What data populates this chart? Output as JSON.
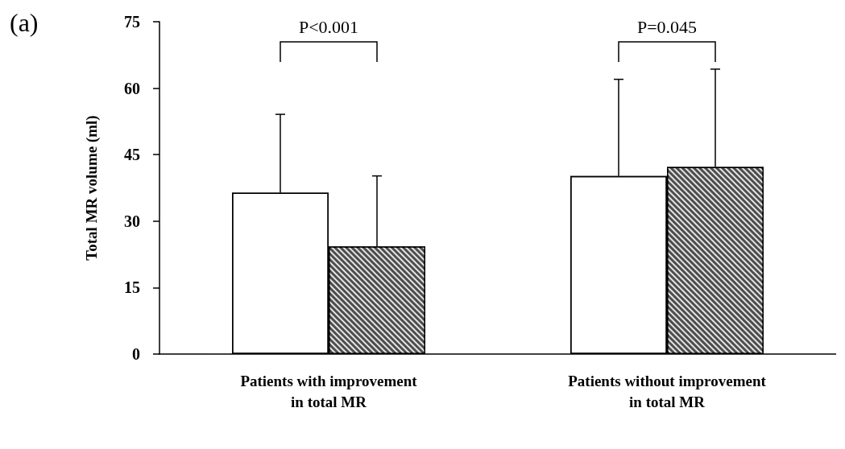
{
  "chart_data": {
    "type": "bar",
    "ylabel": "Total MR volume (ml)",
    "categories": [
      "Patients with improvement\nin total MR",
      "Patients without improvement\nin total MR"
    ],
    "series": [
      {
        "color": "#ffffff",
        "values": [
          36.4,
          40.2
        ],
        "errors": [
          [
            36.4,
            54.1
          ],
          [
            40.2,
            62.0
          ]
        ]
      },
      {
        "color": "#4d4d4d",
        "values": [
          24.3,
          42.2
        ],
        "errors": [
          [
            24.3,
            40.2
          ],
          [
            42.2,
            64.3
          ]
        ]
      }
    ],
    "ylim": [
      0,
      75
    ],
    "yticks": [
      0,
      15,
      30,
      45,
      60,
      75
    ],
    "grid": false,
    "annotations": [
      "(a)",
      "P<0.001",
      "P=0.045"
    ]
  }
}
